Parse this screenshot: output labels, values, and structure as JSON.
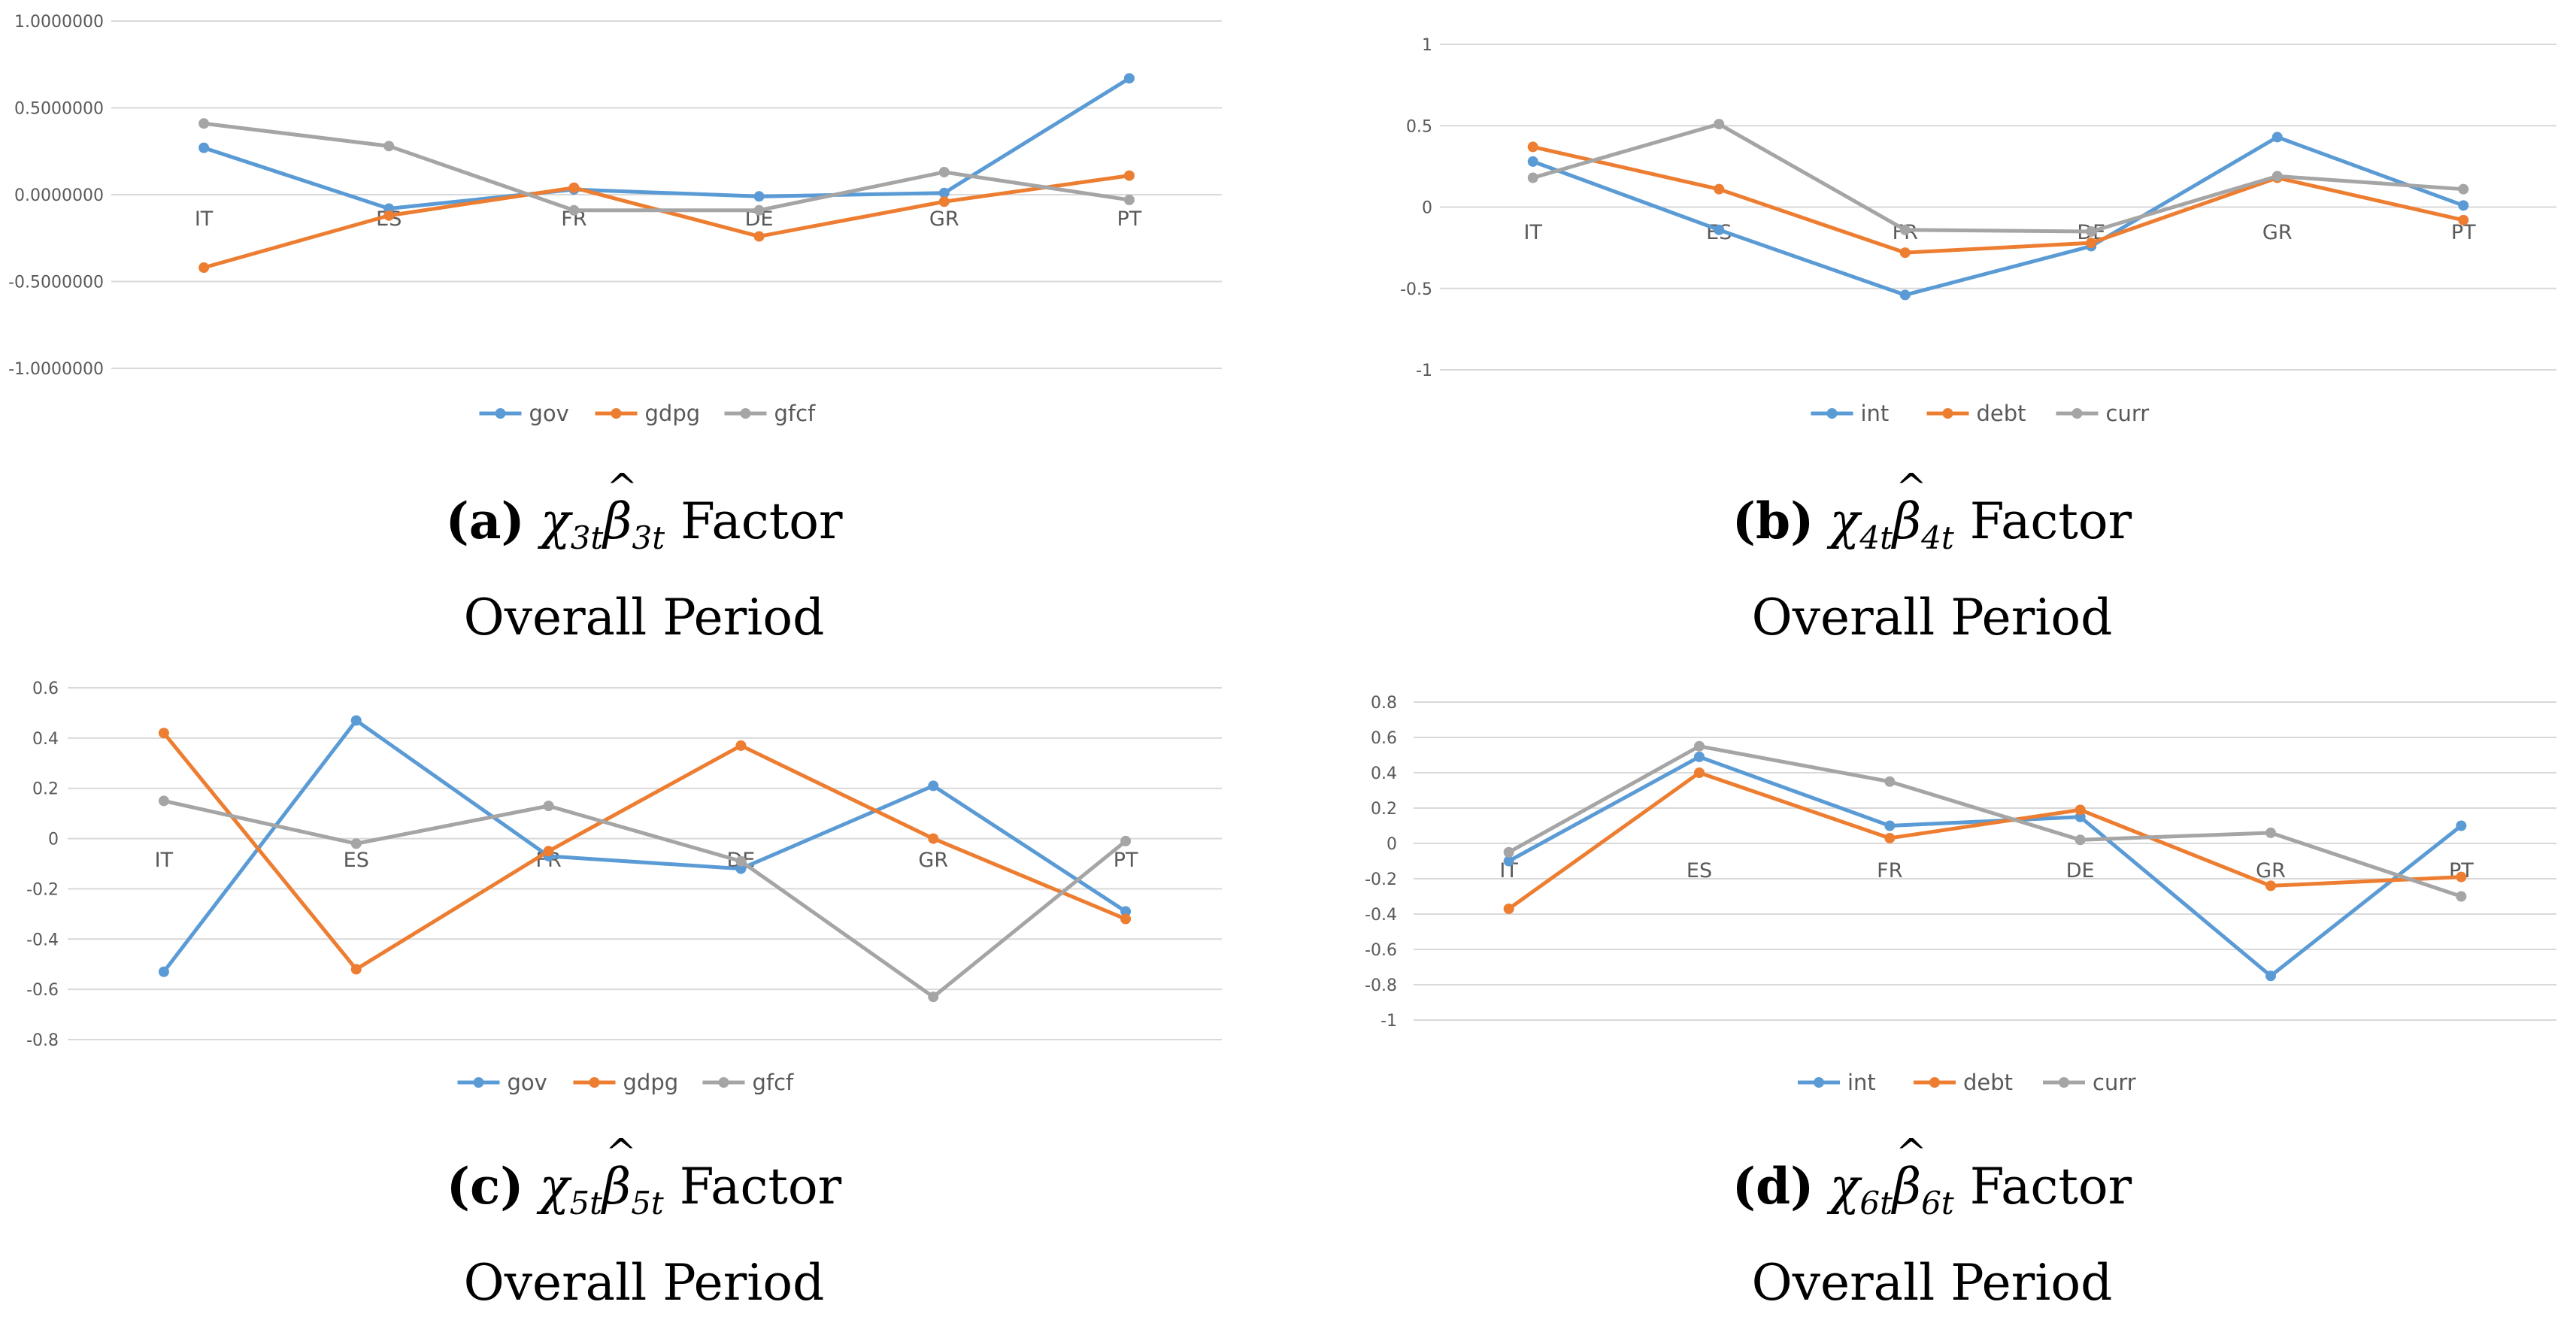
{
  "colors": {
    "blue": "#5B9BD5",
    "orange": "#ED7D31",
    "gray": "#A5A5A5",
    "grid": "#D9D9D9",
    "axis_text": "#595959"
  },
  "chart_data": [
    {
      "type": "line",
      "panel_label": "(a)",
      "factor_label": "Factor",
      "caption_line2": "Overall Period",
      "categories": [
        "IT",
        "ES",
        "FR",
        "DE",
        "GR",
        "PT"
      ],
      "ylim": [
        -1,
        1
      ],
      "y_ticks": [
        1,
        0.5,
        0,
        -0.5,
        -1
      ],
      "y_tick_labels": [
        "1.0000000",
        "0.5000000",
        "0.0000000",
        "-0.5000000",
        "-1.0000000"
      ],
      "legend": "bottom",
      "series": [
        {
          "name": "gov",
          "color": "#5B9BD5",
          "values": [
            0.27,
            -0.08,
            0.03,
            -0.01,
            0.01,
            0.67
          ]
        },
        {
          "name": "gdpg",
          "color": "#ED7D31",
          "values": [
            -0.42,
            -0.12,
            0.04,
            -0.24,
            -0.04,
            0.11
          ]
        },
        {
          "name": "gfcf",
          "color": "#A5A5A5",
          "values": [
            0.41,
            0.28,
            -0.09,
            -0.09,
            0.13,
            -0.03
          ]
        }
      ]
    },
    {
      "type": "line",
      "panel_label": "(b)",
      "factor_label": "Factor",
      "caption_line2": "Overall Period",
      "categories": [
        "IT",
        "ES",
        "FR",
        "DE",
        "GR",
        "PT"
      ],
      "ylim": [
        -1,
        1
      ],
      "y_ticks": [
        1,
        0.5,
        0,
        -0.5,
        -1
      ],
      "y_tick_labels": [
        "1",
        "0.5",
        "0",
        "-0.5",
        "-1"
      ],
      "legend": "bottom",
      "series": [
        {
          "name": "int",
          "color": "#5B9BD5",
          "values": [
            0.28,
            -0.14,
            -0.54,
            -0.24,
            0.43,
            0.01
          ]
        },
        {
          "name": "debt",
          "color": "#ED7D31",
          "values": [
            0.37,
            0.11,
            -0.28,
            -0.22,
            0.18,
            -0.08
          ]
        },
        {
          "name": "curr",
          "color": "#A5A5A5",
          "values": [
            0.18,
            0.51,
            -0.14,
            -0.15,
            0.19,
            0.11
          ]
        }
      ]
    },
    {
      "type": "line",
      "panel_label": "(c)",
      "factor_label": "Factor",
      "caption_line2": "Overall Period",
      "categories": [
        "IT",
        "ES",
        "FR",
        "DE",
        "GR",
        "PT"
      ],
      "ylim": [
        -0.8,
        0.6
      ],
      "y_ticks": [
        0.6,
        0.4,
        0.2,
        0,
        -0.2,
        -0.4,
        -0.6,
        -0.8
      ],
      "y_tick_labels": [
        "0.6",
        "0.4",
        "0.2",
        "0",
        "-0.2",
        "-0.4",
        "-0.6",
        "-0.8"
      ],
      "legend": "bottom",
      "series": [
        {
          "name": "gov",
          "color": "#5B9BD5",
          "values": [
            -0.53,
            0.47,
            -0.07,
            -0.12,
            0.21,
            -0.29
          ]
        },
        {
          "name": "gdpg",
          "color": "#ED7D31",
          "values": [
            0.42,
            -0.52,
            -0.05,
            0.37,
            0.0,
            -0.32
          ]
        },
        {
          "name": "gfcf",
          "color": "#A5A5A5",
          "values": [
            0.15,
            -0.02,
            0.13,
            -0.09,
            -0.63,
            -0.01
          ]
        }
      ]
    },
    {
      "type": "line",
      "panel_label": "(d)",
      "factor_label": "Factor",
      "caption_line2": "Overall Period",
      "categories": [
        "IT",
        "ES",
        "FR",
        "DE",
        "GR",
        "PT"
      ],
      "ylim": [
        -1,
        0.8
      ],
      "y_ticks": [
        0.8,
        0.6,
        0.4,
        0.2,
        0,
        -0.2,
        -0.4,
        -0.6,
        -0.8,
        -1
      ],
      "y_tick_labels": [
        "0.8",
        "0.6",
        "0.4",
        "0.2",
        "0",
        "-0.2",
        "-0.4",
        "-0.6",
        "-0.8",
        "-1"
      ],
      "legend": "bottom",
      "series": [
        {
          "name": "int",
          "color": "#5B9BD5",
          "values": [
            -0.1,
            0.49,
            0.1,
            0.15,
            -0.75,
            0.1
          ]
        },
        {
          "name": "debt",
          "color": "#ED7D31",
          "values": [
            -0.37,
            0.4,
            0.03,
            0.19,
            -0.24,
            -0.19
          ]
        },
        {
          "name": "curr",
          "color": "#A5A5A5",
          "values": [
            -0.05,
            0.55,
            0.35,
            0.02,
            0.06,
            -0.3
          ]
        }
      ]
    }
  ]
}
